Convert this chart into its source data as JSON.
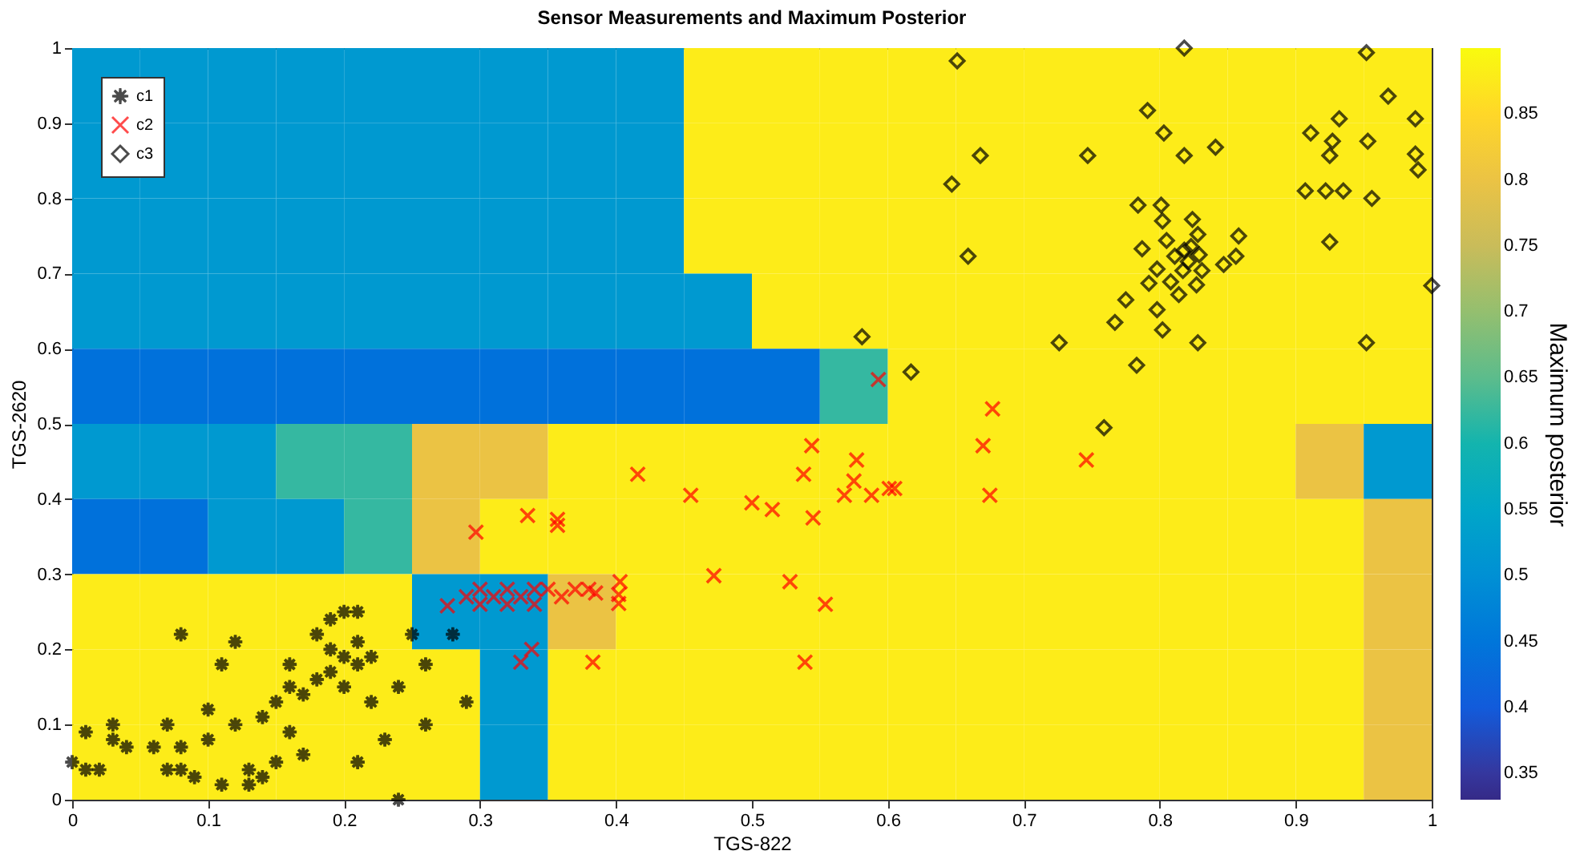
{
  "chart_data": {
    "type": "heatmap",
    "title": "Sensor Measurements and Maximum Posterior",
    "xlabel": "TGS-822",
    "ylabel": "TGS-2620",
    "clabel": "Maximum posterior",
    "xlim": [
      0,
      1
    ],
    "ylim": [
      0,
      1
    ],
    "xticks": [
      0,
      0.1,
      0.2,
      0.3,
      0.4,
      0.5,
      0.6,
      0.7,
      0.8,
      0.9,
      1
    ],
    "yticks": [
      0,
      0.1,
      0.2,
      0.3,
      0.4,
      0.5,
      0.6,
      0.7,
      0.8,
      0.9,
      1
    ],
    "clim": [
      0.33,
      0.9
    ],
    "cticks": [
      0.35,
      0.4,
      0.45,
      0.5,
      0.55,
      0.6,
      0.65,
      0.7,
      0.75,
      0.8,
      0.85
    ],
    "legend": "top left",
    "grid": false,
    "cells": [
      [
        0.52,
        0.52,
        0.52,
        0.52,
        0.52,
        0.52,
        0.52,
        0.52,
        0.52,
        0.88,
        0.88,
        0.88,
        0.88,
        0.88,
        0.88,
        0.88,
        0.88,
        0.88,
        0.88,
        0.88
      ],
      [
        0.52,
        0.52,
        0.52,
        0.52,
        0.52,
        0.52,
        0.52,
        0.52,
        0.52,
        0.88,
        0.88,
        0.88,
        0.88,
        0.88,
        0.88,
        0.88,
        0.88,
        0.88,
        0.88,
        0.88
      ],
      [
        0.52,
        0.52,
        0.52,
        0.52,
        0.52,
        0.52,
        0.52,
        0.52,
        0.52,
        0.88,
        0.88,
        0.88,
        0.88,
        0.88,
        0.88,
        0.88,
        0.88,
        0.88,
        0.88,
        0.88
      ],
      [
        0.52,
        0.52,
        0.52,
        0.52,
        0.52,
        0.52,
        0.52,
        0.52,
        0.52,
        0.52,
        0.88,
        0.88,
        0.88,
        0.88,
        0.88,
        0.88,
        0.88,
        0.88,
        0.88,
        0.88
      ],
      [
        0.44,
        0.44,
        0.44,
        0.44,
        0.44,
        0.44,
        0.44,
        0.44,
        0.44,
        0.44,
        0.44,
        0.62,
        0.88,
        0.88,
        0.88,
        0.88,
        0.88,
        0.88,
        0.88,
        0.88
      ],
      [
        0.52,
        0.52,
        0.52,
        0.62,
        0.62,
        0.8,
        0.8,
        0.88,
        0.88,
        0.88,
        0.88,
        0.88,
        0.88,
        0.88,
        0.88,
        0.88,
        0.88,
        0.88,
        0.8,
        0.52
      ],
      [
        0.44,
        0.44,
        0.52,
        0.52,
        0.62,
        0.8,
        0.88,
        0.88,
        0.88,
        0.88,
        0.88,
        0.88,
        0.88,
        0.88,
        0.88,
        0.88,
        0.88,
        0.88,
        0.88,
        0.8
      ],
      [
        0.88,
        0.88,
        0.88,
        0.88,
        0.88,
        0.52,
        0.52,
        0.8,
        0.88,
        0.88,
        0.88,
        0.88,
        0.88,
        0.88,
        0.88,
        0.88,
        0.88,
        0.88,
        0.88,
        0.8
      ],
      [
        0.88,
        0.88,
        0.88,
        0.88,
        0.88,
        0.88,
        0.52,
        0.88,
        0.88,
        0.88,
        0.88,
        0.88,
        0.88,
        0.88,
        0.88,
        0.88,
        0.88,
        0.88,
        0.88,
        0.8
      ],
      [
        0.88,
        0.88,
        0.88,
        0.88,
        0.88,
        0.88,
        0.52,
        0.88,
        0.88,
        0.88,
        0.88,
        0.88,
        0.88,
        0.88,
        0.88,
        0.88,
        0.88,
        0.88,
        0.88,
        0.8
      ]
    ],
    "series": [
      {
        "type": "scatter",
        "name": "c1",
        "color": "#000000",
        "marker": "star",
        "x": [
          0.0,
          0.01,
          0.01,
          0.02,
          0.03,
          0.03,
          0.04,
          0.06,
          0.07,
          0.07,
          0.08,
          0.08,
          0.08,
          0.09,
          0.1,
          0.1,
          0.11,
          0.11,
          0.12,
          0.12,
          0.13,
          0.13,
          0.14,
          0.14,
          0.15,
          0.16,
          0.16,
          0.16,
          0.17,
          0.17,
          0.18,
          0.18,
          0.19,
          0.19,
          0.19,
          0.2,
          0.2,
          0.2,
          0.21,
          0.21,
          0.21,
          0.22,
          0.22,
          0.23,
          0.24,
          0.24,
          0.25,
          0.26,
          0.26,
          0.28,
          0.29,
          0.15,
          0.21
        ],
        "values": [
          0.05,
          0.04,
          0.09,
          0.04,
          0.1,
          0.08,
          0.07,
          0.07,
          0.04,
          0.1,
          0.04,
          0.07,
          0.22,
          0.03,
          0.12,
          0.08,
          0.18,
          0.02,
          0.1,
          0.21,
          0.04,
          0.02,
          0.11,
          0.03,
          0.13,
          0.15,
          0.18,
          0.09,
          0.14,
          0.06,
          0.16,
          0.22,
          0.2,
          0.17,
          0.24,
          0.25,
          0.19,
          0.15,
          0.18,
          0.25,
          0.21,
          0.19,
          0.13,
          0.08,
          0.0,
          0.15,
          0.22,
          0.1,
          0.18,
          0.22,
          0.13,
          0.05,
          0.05
        ]
      },
      {
        "type": "scatter",
        "name": "c2",
        "color": "#ff0000",
        "marker": "cross",
        "x": [
          0.593,
          0.677,
          0.67,
          0.746,
          0.544,
          0.577,
          0.538,
          0.416,
          0.575,
          0.455,
          0.5,
          0.515,
          0.545,
          0.568,
          0.588,
          0.601,
          0.605,
          0.675,
          0.297,
          0.335,
          0.357,
          0.357,
          0.472,
          0.528,
          0.554,
          0.403,
          0.402,
          0.402,
          0.276,
          0.29,
          0.3,
          0.31,
          0.32,
          0.33,
          0.34,
          0.35,
          0.36,
          0.37,
          0.38,
          0.385,
          0.3,
          0.32,
          0.34,
          0.338,
          0.33,
          0.383,
          0.539
        ],
        "values": [
          0.559,
          0.52,
          0.471,
          0.452,
          0.471,
          0.452,
          0.433,
          0.433,
          0.424,
          0.405,
          0.395,
          0.386,
          0.375,
          0.405,
          0.405,
          0.414,
          0.414,
          0.405,
          0.356,
          0.378,
          0.373,
          0.365,
          0.298,
          0.29,
          0.26,
          0.29,
          0.273,
          0.261,
          0.258,
          0.27,
          0.26,
          0.27,
          0.26,
          0.27,
          0.26,
          0.28,
          0.27,
          0.28,
          0.28,
          0.275,
          0.28,
          0.28,
          0.28,
          0.2,
          0.183,
          0.183,
          0.183
        ]
      },
      {
        "type": "scatter",
        "name": "c3",
        "color": "#000000",
        "marker": "diamond",
        "x": [
          0.651,
          0.818,
          0.952,
          0.968,
          0.988,
          0.932,
          0.911,
          0.927,
          0.953,
          0.925,
          0.988,
          0.99,
          0.791,
          0.803,
          0.818,
          0.841,
          0.668,
          0.747,
          0.647,
          0.907,
          0.922,
          0.935,
          0.956,
          0.784,
          0.801,
          0.802,
          0.824,
          0.828,
          0.858,
          0.805,
          0.925,
          0.787,
          0.818,
          0.823,
          0.829,
          0.811,
          0.821,
          0.847,
          0.856,
          0.659,
          0.798,
          0.831,
          0.817,
          0.792,
          0.808,
          0.827,
          0.814,
          1.0,
          0.775,
          0.798,
          0.767,
          0.802,
          0.726,
          0.828,
          0.952,
          0.783,
          0.581,
          0.617,
          0.759
        ],
        "values": [
          0.983,
          1.0,
          0.994,
          0.936,
          0.906,
          0.906,
          0.887,
          0.876,
          0.876,
          0.857,
          0.859,
          0.838,
          0.917,
          0.887,
          0.857,
          0.868,
          0.857,
          0.857,
          0.819,
          0.81,
          0.81,
          0.81,
          0.8,
          0.791,
          0.791,
          0.77,
          0.772,
          0.752,
          0.75,
          0.744,
          0.742,
          0.733,
          0.731,
          0.736,
          0.725,
          0.723,
          0.716,
          0.712,
          0.723,
          0.723,
          0.706,
          0.704,
          0.704,
          0.687,
          0.689,
          0.685,
          0.672,
          0.684,
          0.665,
          0.652,
          0.635,
          0.625,
          0.608,
          0.608,
          0.608,
          0.578,
          0.616,
          0.569,
          0.495
        ]
      }
    ]
  }
}
